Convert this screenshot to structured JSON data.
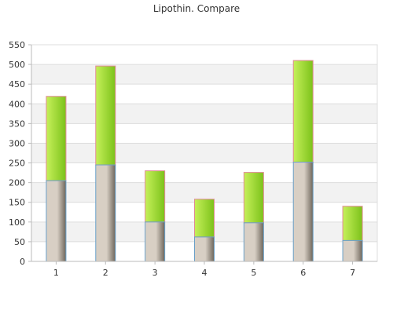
{
  "chart_data": {
    "type": "bar",
    "stacked": true,
    "title": "Lipothin. Compare",
    "xlabel": "",
    "ylabel": "",
    "categories": [
      "1",
      "2",
      "3",
      "4",
      "5",
      "6",
      "7"
    ],
    "series": [
      {
        "values": [
          205,
          245,
          100,
          62,
          98,
          252,
          53
        ]
      },
      {
        "values": [
          214,
          251,
          130,
          96,
          128,
          258,
          87
        ]
      }
    ],
    "ylim": [
      0,
      550
    ],
    "yticks": [
      0,
      50,
      100,
      150,
      200,
      250,
      300,
      350,
      400,
      450,
      500,
      550
    ],
    "grid": true,
    "legend": "none",
    "colors": {
      "bottom_light": "#d8cfc4",
      "bottom_dark": "#6e665b",
      "top_light": "#c6f05a",
      "top_dark": "#7cc21a",
      "bottom_border": "#6aa0c8",
      "top_border": "#e08a96",
      "band": "#f2f2f2",
      "grid": "#dddddd",
      "axis": "#bbbbbb"
    }
  }
}
